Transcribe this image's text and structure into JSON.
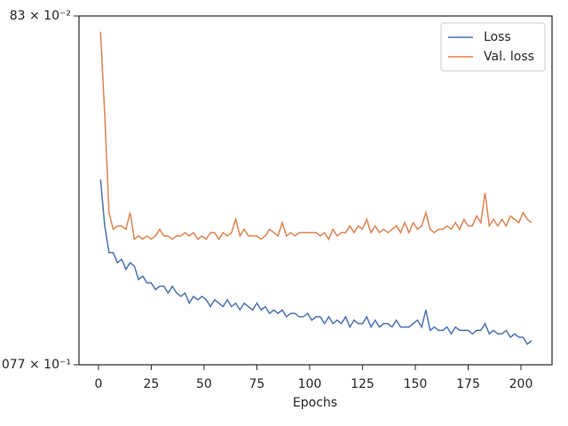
{
  "chart_data": {
    "type": "line",
    "xlabel": "Epochs",
    "log_y": true,
    "legend": "upper right",
    "x": [
      1,
      3,
      5,
      7,
      9,
      11,
      13,
      15,
      17,
      19,
      21,
      23,
      25,
      27,
      29,
      31,
      33,
      35,
      37,
      39,
      41,
      43,
      45,
      47,
      49,
      51,
      53,
      55,
      57,
      59,
      61,
      63,
      65,
      67,
      69,
      71,
      73,
      75,
      77,
      79,
      81,
      83,
      85,
      87,
      89,
      91,
      93,
      95,
      97,
      99,
      101,
      103,
      105,
      107,
      109,
      111,
      113,
      115,
      117,
      119,
      121,
      123,
      125,
      127,
      129,
      131,
      133,
      135,
      137,
      139,
      141,
      143,
      145,
      147,
      149,
      151,
      153,
      155,
      157,
      159,
      161,
      163,
      165,
      167,
      169,
      171,
      173,
      175,
      177,
      179,
      181,
      183,
      185,
      187,
      189,
      191,
      193,
      195,
      197,
      199,
      201,
      203,
      205
    ],
    "series": [
      {
        "name": "Loss",
        "color": "#4c72b0",
        "values": [
          0.1132,
          0.1118,
          0.111,
          0.111,
          0.1107,
          0.1108,
          0.1105,
          0.1107,
          0.1106,
          0.1102,
          0.1103,
          0.1101,
          0.1101,
          0.1099,
          0.11,
          0.11,
          0.1098,
          0.11,
          0.1098,
          0.1097,
          0.1098,
          0.1095,
          0.1097,
          0.1096,
          0.1097,
          0.1096,
          0.1094,
          0.1096,
          0.1095,
          0.1094,
          0.1096,
          0.1094,
          0.1095,
          0.1093,
          0.1095,
          0.1094,
          0.1093,
          0.1095,
          0.1093,
          0.1094,
          0.1092,
          0.1093,
          0.1092,
          0.1093,
          0.1091,
          0.1092,
          0.1092,
          0.1091,
          0.1091,
          0.1092,
          0.109,
          0.1091,
          0.1091,
          0.1089,
          0.1091,
          0.1089,
          0.109,
          0.1089,
          0.1091,
          0.1088,
          0.109,
          0.1089,
          0.1089,
          0.1091,
          0.1088,
          0.109,
          0.1088,
          0.1089,
          0.1089,
          0.1088,
          0.109,
          0.1088,
          0.1088,
          0.1088,
          0.1089,
          0.109,
          0.1088,
          0.1093,
          0.1087,
          0.1088,
          0.1087,
          0.1087,
          0.1088,
          0.1086,
          0.1088,
          0.1087,
          0.1087,
          0.1087,
          0.1086,
          0.1087,
          0.1087,
          0.1089,
          0.1086,
          0.1087,
          0.1086,
          0.1086,
          0.1087,
          0.1085,
          0.1086,
          0.1085,
          0.1085,
          0.1083,
          0.1084
        ]
      },
      {
        "name": "Val. loss",
        "color": "#dd8452",
        "values": [
          0.1178,
          0.1152,
          0.1122,
          0.1117,
          0.1118,
          0.1118,
          0.1117,
          0.1122,
          0.1114,
          0.1115,
          0.1114,
          0.1115,
          0.1114,
          0.1115,
          0.1117,
          0.1115,
          0.1115,
          0.1114,
          0.1115,
          0.1115,
          0.1116,
          0.1115,
          0.1116,
          0.1114,
          0.1115,
          0.1114,
          0.1116,
          0.1116,
          0.1114,
          0.1116,
          0.1115,
          0.1116,
          0.112,
          0.1115,
          0.1117,
          0.1115,
          0.1115,
          0.1115,
          0.1114,
          0.1115,
          0.1117,
          0.1116,
          0.1115,
          0.1119,
          0.1115,
          0.1116,
          0.1115,
          0.1116,
          0.1116,
          0.1116,
          0.1116,
          0.1116,
          0.1115,
          0.1116,
          0.1114,
          0.1117,
          0.1115,
          0.1116,
          0.1116,
          0.1118,
          0.1116,
          0.1118,
          0.1117,
          0.112,
          0.1116,
          0.1118,
          0.1116,
          0.1117,
          0.1116,
          0.1117,
          0.1118,
          0.1116,
          0.1119,
          0.1116,
          0.1119,
          0.1117,
          0.1118,
          0.1122,
          0.1117,
          0.1116,
          0.1117,
          0.1117,
          0.1118,
          0.1117,
          0.1119,
          0.1117,
          0.112,
          0.1118,
          0.1118,
          0.1121,
          0.1119,
          0.1128,
          0.1118,
          0.112,
          0.1118,
          0.112,
          0.1118,
          0.1121,
          0.112,
          0.1119,
          0.1122,
          0.112,
          0.1119
        ]
      }
    ],
    "xlim": [
      -9.2,
      214.7
    ],
    "xticks": [
      0,
      25,
      50,
      75,
      100,
      125,
      150,
      175,
      200
    ],
    "ylim": [
      0.1077,
      0.1183
    ],
    "yticks": [
      {
        "value": 0.1077,
        "label": "077 × 10⁻¹"
      },
      {
        "value": 0.1183,
        "label": "83 × 10⁻²"
      }
    ]
  }
}
